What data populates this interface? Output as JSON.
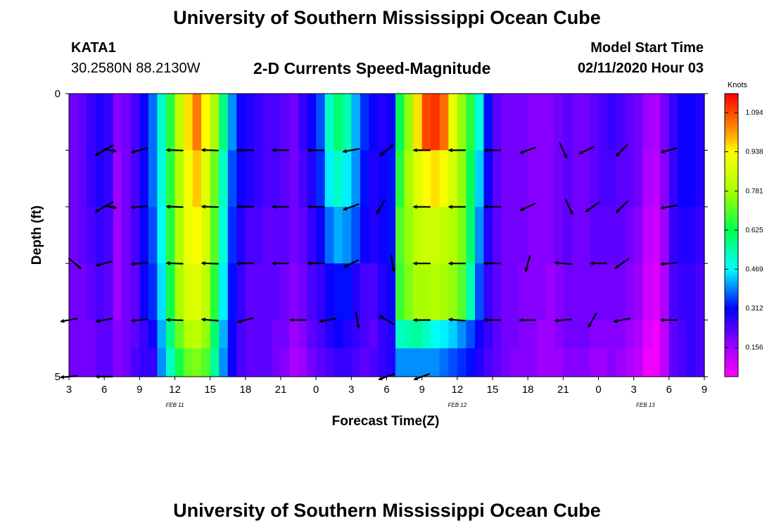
{
  "header": {
    "title": "University of Southern Mississippi Ocean Cube",
    "station_id": "KATA1",
    "station_coords": "30.2580N 88.2130W",
    "plot_title": "2-D Currents Speed-Magnitude",
    "model_label": "Model Start Time",
    "model_time": "02/11/2020 Hour 03"
  },
  "footer": {
    "title": "University of Southern Mississippi Ocean Cube"
  },
  "chart_data": {
    "type": "heatmap",
    "title": "2-D Currents Speed-Magnitude",
    "xlabel": "Forecast Time(Z)",
    "ylabel": "Depth (ft)",
    "colorbar_label": "Knots",
    "colorbar_ticks": [
      "1.094",
      "0.938",
      "0.781",
      "0.625",
      "0.469",
      "0.312",
      "0.156"
    ],
    "colorbar_values": [
      1.094,
      0.938,
      0.781,
      0.625,
      0.469,
      0.312,
      0.156
    ],
    "colorbar_range": [
      0.04,
      1.17
    ],
    "x_tick_labels": [
      "3",
      "6",
      "9",
      "12",
      "15",
      "18",
      "21",
      "0",
      "3",
      "6",
      "9",
      "12",
      "15",
      "18",
      "21",
      "0",
      "3",
      "6",
      "9"
    ],
    "x_hour_range": [
      0,
      54
    ],
    "date_labels": [
      {
        "text": "FEB 11",
        "hour": 9
      },
      {
        "text": "FEB 12",
        "hour": 33
      },
      {
        "text": "FEB 13",
        "hour": 49
      }
    ],
    "y_tick_labels": [
      "0",
      "5"
    ],
    "y_range": [
      0,
      5
    ],
    "depth_levels": [
      0.5,
      1.5,
      2.5,
      3.5,
      4.5,
      5.0
    ],
    "speed_columns": [
      [
        0.2,
        0.2,
        0.2,
        0.2,
        0.2,
        0.2
      ],
      [
        0.22,
        0.22,
        0.22,
        0.2,
        0.2,
        0.2
      ],
      [
        0.26,
        0.26,
        0.24,
        0.22,
        0.2,
        0.2
      ],
      [
        0.28,
        0.28,
        0.26,
        0.24,
        0.22,
        0.22
      ],
      [
        0.26,
        0.26,
        0.24,
        0.22,
        0.22,
        0.22
      ],
      [
        0.18,
        0.16,
        0.16,
        0.16,
        0.18,
        0.18
      ],
      [
        0.2,
        0.2,
        0.2,
        0.2,
        0.2,
        0.2
      ],
      [
        0.24,
        0.24,
        0.24,
        0.22,
        0.22,
        0.24
      ],
      [
        0.3,
        0.3,
        0.3,
        0.3,
        0.26,
        0.26
      ],
      [
        0.38,
        0.38,
        0.36,
        0.34,
        0.3,
        0.26
      ],
      [
        0.52,
        0.5,
        0.48,
        0.45,
        0.42,
        0.4
      ],
      [
        0.66,
        0.66,
        0.66,
        0.64,
        0.58,
        0.52
      ],
      [
        0.82,
        0.8,
        0.8,
        0.78,
        0.72,
        0.64
      ],
      [
        0.96,
        0.92,
        0.9,
        0.86,
        0.8,
        0.72
      ],
      [
        1.05,
        0.98,
        0.94,
        0.88,
        0.82,
        0.74
      ],
      [
        0.94,
        0.88,
        0.86,
        0.82,
        0.76,
        0.7
      ],
      [
        0.78,
        0.72,
        0.7,
        0.66,
        0.6,
        0.56
      ],
      [
        0.58,
        0.52,
        0.5,
        0.46,
        0.42,
        0.4
      ],
      [
        0.4,
        0.36,
        0.34,
        0.32,
        0.3,
        0.3
      ],
      [
        0.3,
        0.3,
        0.28,
        0.26,
        0.24,
        0.24
      ],
      [
        0.28,
        0.28,
        0.24,
        0.22,
        0.22,
        0.22
      ],
      [
        0.26,
        0.26,
        0.24,
        0.22,
        0.22,
        0.22
      ],
      [
        0.24,
        0.24,
        0.22,
        0.22,
        0.22,
        0.22
      ],
      [
        0.24,
        0.24,
        0.22,
        0.22,
        0.2,
        0.2
      ],
      [
        0.22,
        0.22,
        0.22,
        0.2,
        0.2,
        0.18
      ],
      [
        0.2,
        0.2,
        0.2,
        0.18,
        0.16,
        0.14
      ],
      [
        0.26,
        0.24,
        0.22,
        0.2,
        0.18,
        0.16
      ],
      [
        0.3,
        0.28,
        0.26,
        0.24,
        0.22,
        0.2
      ],
      [
        0.36,
        0.34,
        0.3,
        0.26,
        0.24,
        0.22
      ],
      [
        0.52,
        0.46,
        0.38,
        0.3,
        0.28,
        0.24
      ],
      [
        0.6,
        0.52,
        0.42,
        0.32,
        0.3,
        0.26
      ],
      [
        0.54,
        0.46,
        0.4,
        0.32,
        0.28,
        0.26
      ],
      [
        0.42,
        0.4,
        0.36,
        0.28,
        0.26,
        0.24
      ],
      [
        0.34,
        0.32,
        0.3,
        0.24,
        0.24,
        0.22
      ],
      [
        0.3,
        0.28,
        0.28,
        0.24,
        0.22,
        0.24
      ],
      [
        0.28,
        0.3,
        0.3,
        0.28,
        0.26,
        0.26
      ],
      [
        0.3,
        0.32,
        0.32,
        0.3,
        0.28,
        0.28
      ],
      [
        0.62,
        0.66,
        0.7,
        0.68,
        0.52,
        0.4
      ],
      [
        0.76,
        0.78,
        0.76,
        0.74,
        0.54,
        0.4
      ],
      [
        0.96,
        0.88,
        0.82,
        0.78,
        0.56,
        0.4
      ],
      [
        1.1,
        0.94,
        0.84,
        0.78,
        0.52,
        0.4
      ],
      [
        1.12,
        0.96,
        0.84,
        0.8,
        0.48,
        0.4
      ],
      [
        1.06,
        0.92,
        0.82,
        0.78,
        0.46,
        0.38
      ],
      [
        0.9,
        0.86,
        0.8,
        0.76,
        0.44,
        0.36
      ],
      [
        0.76,
        0.76,
        0.74,
        0.7,
        0.4,
        0.34
      ],
      [
        0.66,
        0.62,
        0.6,
        0.54,
        0.36,
        0.32
      ],
      [
        0.5,
        0.44,
        0.4,
        0.36,
        0.3,
        0.28
      ],
      [
        0.32,
        0.3,
        0.28,
        0.26,
        0.26,
        0.24
      ],
      [
        0.22,
        0.22,
        0.22,
        0.22,
        0.22,
        0.22
      ],
      [
        0.2,
        0.2,
        0.2,
        0.2,
        0.2,
        0.2
      ],
      [
        0.2,
        0.2,
        0.2,
        0.2,
        0.2,
        0.18
      ],
      [
        0.2,
        0.2,
        0.2,
        0.18,
        0.18,
        0.18
      ],
      [
        0.18,
        0.18,
        0.18,
        0.18,
        0.18,
        0.18
      ],
      [
        0.18,
        0.18,
        0.18,
        0.18,
        0.16,
        0.16
      ],
      [
        0.18,
        0.18,
        0.18,
        0.16,
        0.16,
        0.16
      ],
      [
        0.2,
        0.2,
        0.2,
        0.18,
        0.18,
        0.16
      ],
      [
        0.22,
        0.22,
        0.22,
        0.2,
        0.2,
        0.18
      ],
      [
        0.2,
        0.2,
        0.2,
        0.2,
        0.2,
        0.18
      ],
      [
        0.2,
        0.2,
        0.2,
        0.2,
        0.2,
        0.18
      ],
      [
        0.22,
        0.22,
        0.22,
        0.2,
        0.18,
        0.16
      ],
      [
        0.24,
        0.24,
        0.22,
        0.2,
        0.18,
        0.16
      ],
      [
        0.26,
        0.24,
        0.22,
        0.2,
        0.18,
        0.18
      ],
      [
        0.24,
        0.22,
        0.22,
        0.2,
        0.18,
        0.16
      ],
      [
        0.22,
        0.22,
        0.2,
        0.18,
        0.16,
        0.14
      ],
      [
        0.2,
        0.2,
        0.18,
        0.16,
        0.14,
        0.12
      ],
      [
        0.16,
        0.14,
        0.12,
        0.1,
        0.08,
        0.06
      ],
      [
        0.14,
        0.12,
        0.1,
        0.08,
        0.06,
        0.06
      ],
      [
        0.2,
        0.18,
        0.16,
        0.14,
        0.12,
        0.12
      ],
      [
        0.26,
        0.26,
        0.26,
        0.24,
        0.22,
        0.22
      ],
      [
        0.3,
        0.3,
        0.28,
        0.26,
        0.24,
        0.24
      ],
      [
        0.3,
        0.3,
        0.28,
        0.26,
        0.26,
        0.26
      ],
      [
        0.28,
        0.28,
        0.26,
        0.24,
        0.24,
        0.24
      ]
    ],
    "vector_rows": [
      {
        "depth": 1,
        "vectors": [
          {
            "hour": 3.0,
            "dir": 210,
            "len": 0.5
          },
          {
            "hour": 3.5,
            "dir": 350,
            "len": 0.3
          },
          {
            "hour": 6.0,
            "dir": 195,
            "len": 0.4
          },
          {
            "hour": 9.0,
            "dir": 178,
            "len": 0.4
          },
          {
            "hour": 12.0,
            "dir": 178,
            "len": 0.4
          },
          {
            "hour": 15.0,
            "dir": 180,
            "len": 0.4
          },
          {
            "hour": 18.0,
            "dir": 180,
            "len": 0.4
          },
          {
            "hour": 21.0,
            "dir": 180,
            "len": 0.4
          },
          {
            "hour": 24.0,
            "dir": 190,
            "len": 0.4
          },
          {
            "hour": 27.0,
            "dir": 220,
            "len": 0.4
          },
          {
            "hour": 30.0,
            "dir": 180,
            "len": 0.4
          },
          {
            "hour": 33.0,
            "dir": 180,
            "len": 0.4
          },
          {
            "hour": 36.0,
            "dir": 180,
            "len": 0.4
          },
          {
            "hour": 39.0,
            "dir": 200,
            "len": 0.4
          },
          {
            "hour": 42.0,
            "dir": 295,
            "len": 0.4
          },
          {
            "hour": 44.0,
            "dir": 205,
            "len": 0.4
          },
          {
            "hour": 47.0,
            "dir": 225,
            "len": 0.4
          },
          {
            "hour": 51.0,
            "dir": 195,
            "len": 0.4
          }
        ]
      },
      {
        "depth": 2,
        "vectors": [
          {
            "hour": 3.0,
            "dir": 210,
            "len": 0.5
          },
          {
            "hour": 3.5,
            "dir": 350,
            "len": 0.3
          },
          {
            "hour": 6.0,
            "dir": 185,
            "len": 0.4
          },
          {
            "hour": 9.0,
            "dir": 178,
            "len": 0.4
          },
          {
            "hour": 12.0,
            "dir": 178,
            "len": 0.4
          },
          {
            "hour": 15.0,
            "dir": 180,
            "len": 0.4
          },
          {
            "hour": 18.0,
            "dir": 180,
            "len": 0.4
          },
          {
            "hour": 21.0,
            "dir": 180,
            "len": 0.4
          },
          {
            "hour": 24.0,
            "dir": 200,
            "len": 0.4
          },
          {
            "hour": 26.5,
            "dir": 240,
            "len": 0.4
          },
          {
            "hour": 30.0,
            "dir": 180,
            "len": 0.4
          },
          {
            "hour": 33.0,
            "dir": 180,
            "len": 0.4
          },
          {
            "hour": 36.0,
            "dir": 180,
            "len": 0.4
          },
          {
            "hour": 39.0,
            "dir": 205,
            "len": 0.4
          },
          {
            "hour": 42.5,
            "dir": 295,
            "len": 0.4
          },
          {
            "hour": 44.5,
            "dir": 215,
            "len": 0.4
          },
          {
            "hour": 47.0,
            "dir": 225,
            "len": 0.4
          },
          {
            "hour": 51.0,
            "dir": 190,
            "len": 0.4
          }
        ]
      },
      {
        "depth": 3,
        "vectors": [
          {
            "hour": 0.5,
            "dir": 320,
            "len": 0.4
          },
          {
            "hour": 3.0,
            "dir": 195,
            "len": 0.4
          },
          {
            "hour": 6.0,
            "dir": 185,
            "len": 0.4
          },
          {
            "hour": 9.0,
            "dir": 178,
            "len": 0.4
          },
          {
            "hour": 12.0,
            "dir": 178,
            "len": 0.4
          },
          {
            "hour": 15.0,
            "dir": 180,
            "len": 0.4
          },
          {
            "hour": 18.0,
            "dir": 180,
            "len": 0.4
          },
          {
            "hour": 21.0,
            "dir": 180,
            "len": 0.4
          },
          {
            "hour": 24.0,
            "dir": 205,
            "len": 0.4
          },
          {
            "hour": 27.5,
            "dir": 280,
            "len": 0.4
          },
          {
            "hour": 30.0,
            "dir": 180,
            "len": 0.4
          },
          {
            "hour": 33.0,
            "dir": 180,
            "len": 0.4
          },
          {
            "hour": 36.0,
            "dir": 180,
            "len": 0.4
          },
          {
            "hour": 39.0,
            "dir": 255,
            "len": 0.4
          },
          {
            "hour": 42.0,
            "dir": 175,
            "len": 0.4
          },
          {
            "hour": 45.0,
            "dir": 180,
            "len": 0.4
          },
          {
            "hour": 47.0,
            "dir": 215,
            "len": 0.4
          },
          {
            "hour": 51.0,
            "dir": 185,
            "len": 0.4
          }
        ]
      },
      {
        "depth": 4,
        "vectors": [
          {
            "hour": 0.0,
            "dir": 190,
            "len": 0.4
          },
          {
            "hour": 3.0,
            "dir": 190,
            "len": 0.4
          },
          {
            "hour": 6.0,
            "dir": 185,
            "len": 0.4
          },
          {
            "hour": 9.0,
            "dir": 178,
            "len": 0.4
          },
          {
            "hour": 12.0,
            "dir": 175,
            "len": 0.4
          },
          {
            "hour": 15.0,
            "dir": 195,
            "len": 0.4
          },
          {
            "hour": 19.5,
            "dir": 180,
            "len": 0.4
          },
          {
            "hour": 22.0,
            "dir": 190,
            "len": 0.4
          },
          {
            "hour": 24.5,
            "dir": 280,
            "len": 0.4
          },
          {
            "hour": 27.0,
            "dir": 150,
            "len": 0.4
          },
          {
            "hour": 30.0,
            "dir": 180,
            "len": 0.4
          },
          {
            "hour": 33.0,
            "dir": 175,
            "len": 0.4
          },
          {
            "hour": 36.0,
            "dir": 180,
            "len": 0.4
          },
          {
            "hour": 39.0,
            "dir": 180,
            "len": 0.4
          },
          {
            "hour": 42.0,
            "dir": 185,
            "len": 0.4
          },
          {
            "hour": 44.5,
            "dir": 240,
            "len": 0.4
          },
          {
            "hour": 47.0,
            "dir": 190,
            "len": 0.4
          },
          {
            "hour": 51.0,
            "dir": 180,
            "len": 0.4
          }
        ]
      },
      {
        "depth": 5,
        "vectors": [
          {
            "hour": 0.0,
            "dir": 185,
            "len": 0.4
          },
          {
            "hour": 3.0,
            "dir": 180,
            "len": 0.4
          },
          {
            "hour": 27.0,
            "dir": 200,
            "len": 0.4
          },
          {
            "hour": 30.0,
            "dir": 200,
            "len": 0.4
          }
        ]
      }
    ]
  }
}
